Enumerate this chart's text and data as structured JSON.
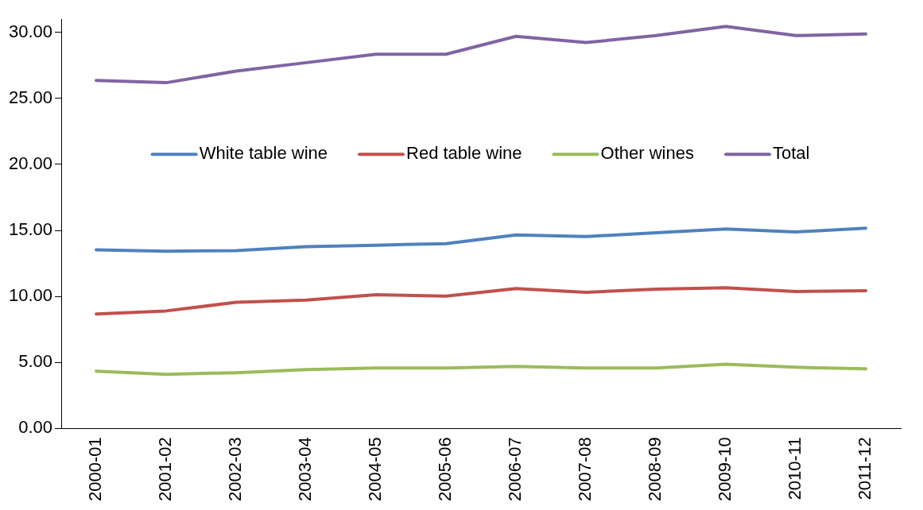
{
  "chart_data": {
    "type": "line",
    "categories": [
      "2000-01",
      "2001-02",
      "2002-03",
      "2003-04",
      "2004-05",
      "2005-06",
      "2006-07",
      "2007-08",
      "2008-09",
      "2009-10",
      "2010-11",
      "2011-12"
    ],
    "series": [
      {
        "name": "White table wine",
        "color": "#4f81bd",
        "values": [
          13.53,
          13.42,
          13.47,
          13.77,
          13.88,
          14.0,
          14.65,
          14.53,
          14.82,
          15.11,
          14.88,
          15.17
        ]
      },
      {
        "name": "Red table wine",
        "color": "#c0504d",
        "values": [
          8.67,
          8.9,
          9.55,
          9.72,
          10.13,
          10.02,
          10.6,
          10.31,
          10.55,
          10.66,
          10.37,
          10.43
        ]
      },
      {
        "name": "Other wines",
        "color": "#9bbb59",
        "values": [
          4.34,
          4.1,
          4.22,
          4.45,
          4.57,
          4.57,
          4.69,
          4.57,
          4.57,
          4.86,
          4.63,
          4.51
        ]
      },
      {
        "name": "Total",
        "color": "#8064a2",
        "values": [
          26.36,
          26.19,
          27.07,
          27.71,
          28.35,
          28.35,
          29.7,
          29.23,
          29.76,
          30.46,
          29.76,
          29.88
        ]
      }
    ],
    "ylim": [
      0,
      31
    ],
    "yticks": [
      {
        "value": 0,
        "label": "0.00"
      },
      {
        "value": 5,
        "label": "5.00"
      },
      {
        "value": 10,
        "label": "10.00"
      },
      {
        "value": 15,
        "label": "15.00"
      },
      {
        "value": 20,
        "label": "20.00"
      },
      {
        "value": 25,
        "label": "25.00"
      },
      {
        "value": 30,
        "label": "30.00"
      }
    ],
    "grid": false,
    "legend": "center",
    "marker": "none",
    "line_style": "solid"
  }
}
